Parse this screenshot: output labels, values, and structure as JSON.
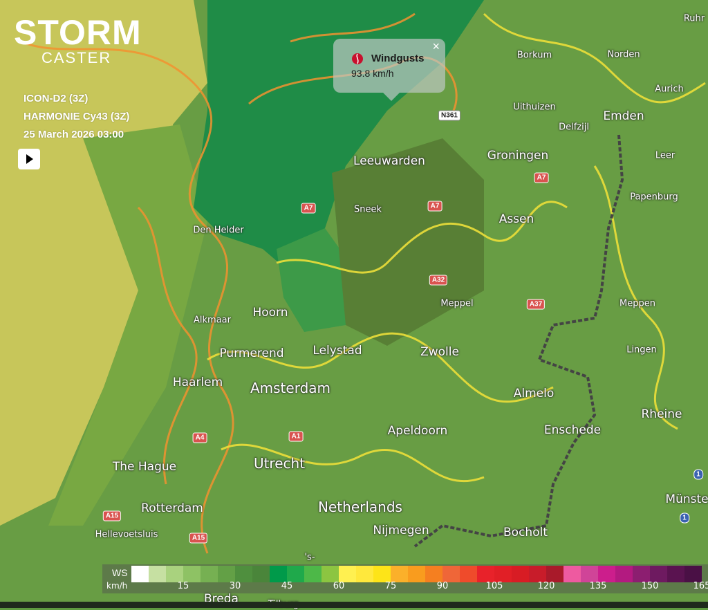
{
  "app": {
    "logo_top": "STORM",
    "logo_bottom": "CASTER",
    "brand_color": "#c8102e"
  },
  "info": {
    "model1": "ICON-D2 (3Z)",
    "model2": "HARMONIE Cy43 (3Z)",
    "datetime": "25 March 2026 03:00"
  },
  "controls": {
    "play_icon": "play-icon"
  },
  "popup": {
    "title": "Windgusts",
    "value": "93.8 km/h",
    "close": "×",
    "icon": "stormcaster-flame-icon"
  },
  "cities": [
    "Ruhr",
    "Borkum",
    "Norden",
    "Aurich",
    "Emden",
    "Uithuizen",
    "Delfzijl",
    "Groningen",
    "Leer",
    "Leeuwarden",
    "Papenburg",
    "Sneek",
    "Assen",
    "Den Helder",
    "Meppel",
    "Meppen",
    "Hoorn",
    "Alkmaar",
    "Lelystad",
    "Zwolle",
    "Lingen",
    "Purmerend",
    "Haarlem",
    "Amsterdam",
    "Almelo",
    "Rheine",
    "Apeldoorn",
    "Enschede",
    "Utrecht",
    "The Hague",
    "Netherlands",
    "Rotterdam",
    "Münster",
    "Nijmegen",
    "Bocholt",
    "Hellevoetsluis",
    "Breda",
    "'s-",
    "Tilburg"
  ],
  "roads": [
    "N361",
    "A7",
    "A7",
    "A7",
    "A32",
    "A37",
    "A4",
    "A1",
    "A15",
    "A15",
    "1",
    "1"
  ],
  "legend": {
    "label": "WS",
    "unit": "km/h",
    "ticks": [
      "15",
      "30",
      "45",
      "60",
      "75",
      "90",
      "105",
      "120",
      "135",
      "150",
      "165"
    ],
    "colors": [
      "#ffffff",
      "#c6e0a2",
      "#a9d27e",
      "#8ec264",
      "#76b052",
      "#63a046",
      "#4f8f3e",
      "#4a853a",
      "#009a4a",
      "#1fa94b",
      "#4db848",
      "#8cc541",
      "#fff050",
      "#ffe83c",
      "#fde418",
      "#fbb02a",
      "#f99c1e",
      "#f57f20",
      "#ef6638",
      "#ef4b2b",
      "#e8222a",
      "#e11f26",
      "#d81c24",
      "#c81c2a",
      "#a91a2a",
      "#ee5aa0",
      "#d04498",
      "#cc1e8c",
      "#b31a80",
      "#8c1e70",
      "#6e1a60",
      "#5a1350",
      "#4a1045"
    ]
  }
}
